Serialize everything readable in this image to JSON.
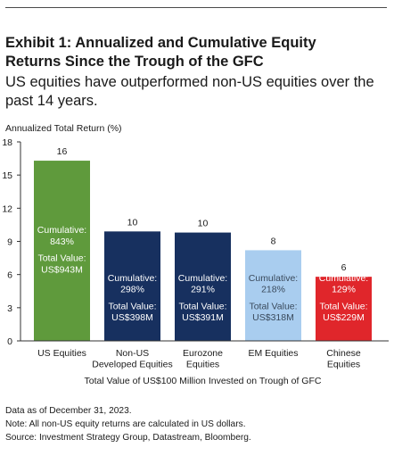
{
  "header": {
    "title_line1": "Exhibit 1: Annualized and Cumulative Equity",
    "title_line2": "Returns Since the Trough of the GFC",
    "subtitle_line1": "US equities have outperformed non-US equities over the",
    "subtitle_line2": "past 14 years."
  },
  "chart_data": {
    "type": "bar",
    "ylabel": "Annualized Total Return (%)",
    "xlabel": "Total Value of US$100 Million Invested on Trough of GFC",
    "ylim": [
      0,
      18
    ],
    "yticks": [
      "0",
      "3",
      "6",
      "9",
      "12",
      "15",
      "18"
    ],
    "grid": false,
    "categories": [
      [
        "US Equities"
      ],
      [
        "Non-US",
        "Developed Equities"
      ],
      [
        "Eurozone",
        "Equities"
      ],
      [
        "EM Equities"
      ],
      [
        "Chinese",
        "Equities"
      ]
    ],
    "values": [
      16.3,
      9.9,
      9.8,
      8.2,
      5.8
    ],
    "value_labels": [
      "16",
      "10",
      "10",
      "8",
      "6"
    ],
    "cumulative": [
      [
        "Cumulative:",
        "843%"
      ],
      [
        "Cumulative:",
        "298%"
      ],
      [
        "Cumulative:",
        "291%"
      ],
      [
        "Cumulative:",
        "218%"
      ],
      [
        "Cumulative:",
        "129%"
      ]
    ],
    "total_value": [
      [
        "Total Value:",
        "US$943M"
      ],
      [
        "Total Value:",
        "US$398M"
      ],
      [
        "Total Value:",
        "US$391M"
      ],
      [
        "Total Value:",
        "US$318M"
      ],
      [
        "Total Value:",
        "US$229M"
      ]
    ],
    "colors": [
      "#5f9a3c",
      "#17305f",
      "#17305f",
      "#a9cdef",
      "#e0262b"
    ],
    "text_colors": [
      "#ffffff",
      "#ffffff",
      "#ffffff",
      "#3a4a5c",
      "#ffffff"
    ]
  },
  "footnotes": {
    "line1": "Data as of December 31, 2023.",
    "line2": "Note: All non-US equity returns are calculated in US dollars.",
    "line3": "Source: Investment Strategy Group, Datastream, Bloomberg."
  }
}
